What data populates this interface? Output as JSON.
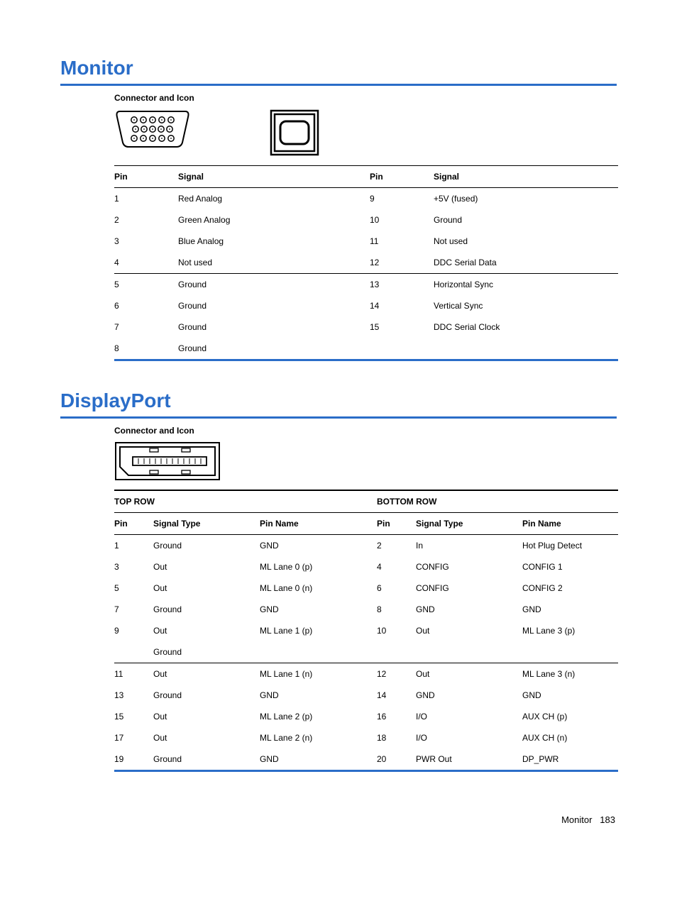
{
  "monitor": {
    "title": "Monitor",
    "connector_label": "Connector and Icon",
    "headers": {
      "pin": "Pin",
      "signal": "Signal"
    },
    "rows": [
      {
        "p1": "1",
        "s1": "Red Analog",
        "p2": "9",
        "s2": "+5V (fused)"
      },
      {
        "p1": "2",
        "s1": "Green Analog",
        "p2": "10",
        "s2": "Ground"
      },
      {
        "p1": "3",
        "s1": "Blue Analog",
        "p2": "11",
        "s2": "Not used"
      },
      {
        "p1": "4",
        "s1": "Not used",
        "p2": "12",
        "s2": "DDC Serial Data"
      },
      {
        "p1": "5",
        "s1": "Ground",
        "p2": "13",
        "s2": "Horizontal Sync"
      },
      {
        "p1": "6",
        "s1": "Ground",
        "p2": "14",
        "s2": "Vertical Sync"
      },
      {
        "p1": "7",
        "s1": "Ground",
        "p2": "15",
        "s2": "DDC Serial Clock"
      },
      {
        "p1": "8",
        "s1": "Ground",
        "p2": "",
        "s2": ""
      }
    ],
    "rule_after_row_index": 3
  },
  "displayport": {
    "title": "DisplayPort",
    "connector_label": "Connector and Icon",
    "top_row_label": "TOP ROW",
    "bottom_row_label": "BOTTOM ROW",
    "headers": {
      "pin": "Pin",
      "type": "Signal Type",
      "name": "Pin Name"
    },
    "rows": [
      {
        "p1": "1",
        "t1": "Ground",
        "n1": "GND",
        "p2": "2",
        "t2": "In",
        "n2": "Hot Plug Detect"
      },
      {
        "p1": "3",
        "t1": "Out",
        "n1": "ML Lane 0 (p)",
        "p2": "4",
        "t2": "CONFIG",
        "n2": "CONFIG 1"
      },
      {
        "p1": "5",
        "t1": "Out",
        "n1": "ML Lane 0 (n)",
        "p2": "6",
        "t2": "CONFIG",
        "n2": "CONFIG 2"
      },
      {
        "p1": "7",
        "t1": "Ground",
        "n1": "GND",
        "p2": "8",
        "t2": "GND",
        "n2": "GND"
      },
      {
        "p1": "9",
        "t1": "Out",
        "n1": "ML Lane 1 (p)",
        "p2": "10",
        "t2": "Out",
        "n2": "ML Lane 3 (p)"
      },
      {
        "p1": "",
        "t1": "Ground",
        "n1": "",
        "p2": "",
        "t2": "",
        "n2": ""
      },
      {
        "p1": "11",
        "t1": "Out",
        "n1": "ML Lane 1 (n)",
        "p2": "12",
        "t2": "Out",
        "n2": "ML Lane 3 (n)"
      },
      {
        "p1": "13",
        "t1": "Ground",
        "n1": "GND",
        "p2": "14",
        "t2": "GND",
        "n2": "GND"
      },
      {
        "p1": "15",
        "t1": "Out",
        "n1": "ML Lane 2 (p)",
        "p2": "16",
        "t2": "I/O",
        "n2": "AUX CH (p)"
      },
      {
        "p1": "17",
        "t1": "Out",
        "n1": "ML Lane 2 (n)",
        "p2": "18",
        "t2": "I/O",
        "n2": "AUX CH (n)"
      },
      {
        "p1": "19",
        "t1": "Ground",
        "n1": "GND",
        "p2": "20",
        "t2": "PWR Out",
        "n2": "DP_PWR"
      }
    ],
    "rule_after_row_index": 5
  },
  "footer": {
    "label": "Monitor",
    "page": "183"
  },
  "colors": {
    "accent_blue": "#2a6dc8",
    "text": "#000000",
    "background": "#ffffff"
  }
}
